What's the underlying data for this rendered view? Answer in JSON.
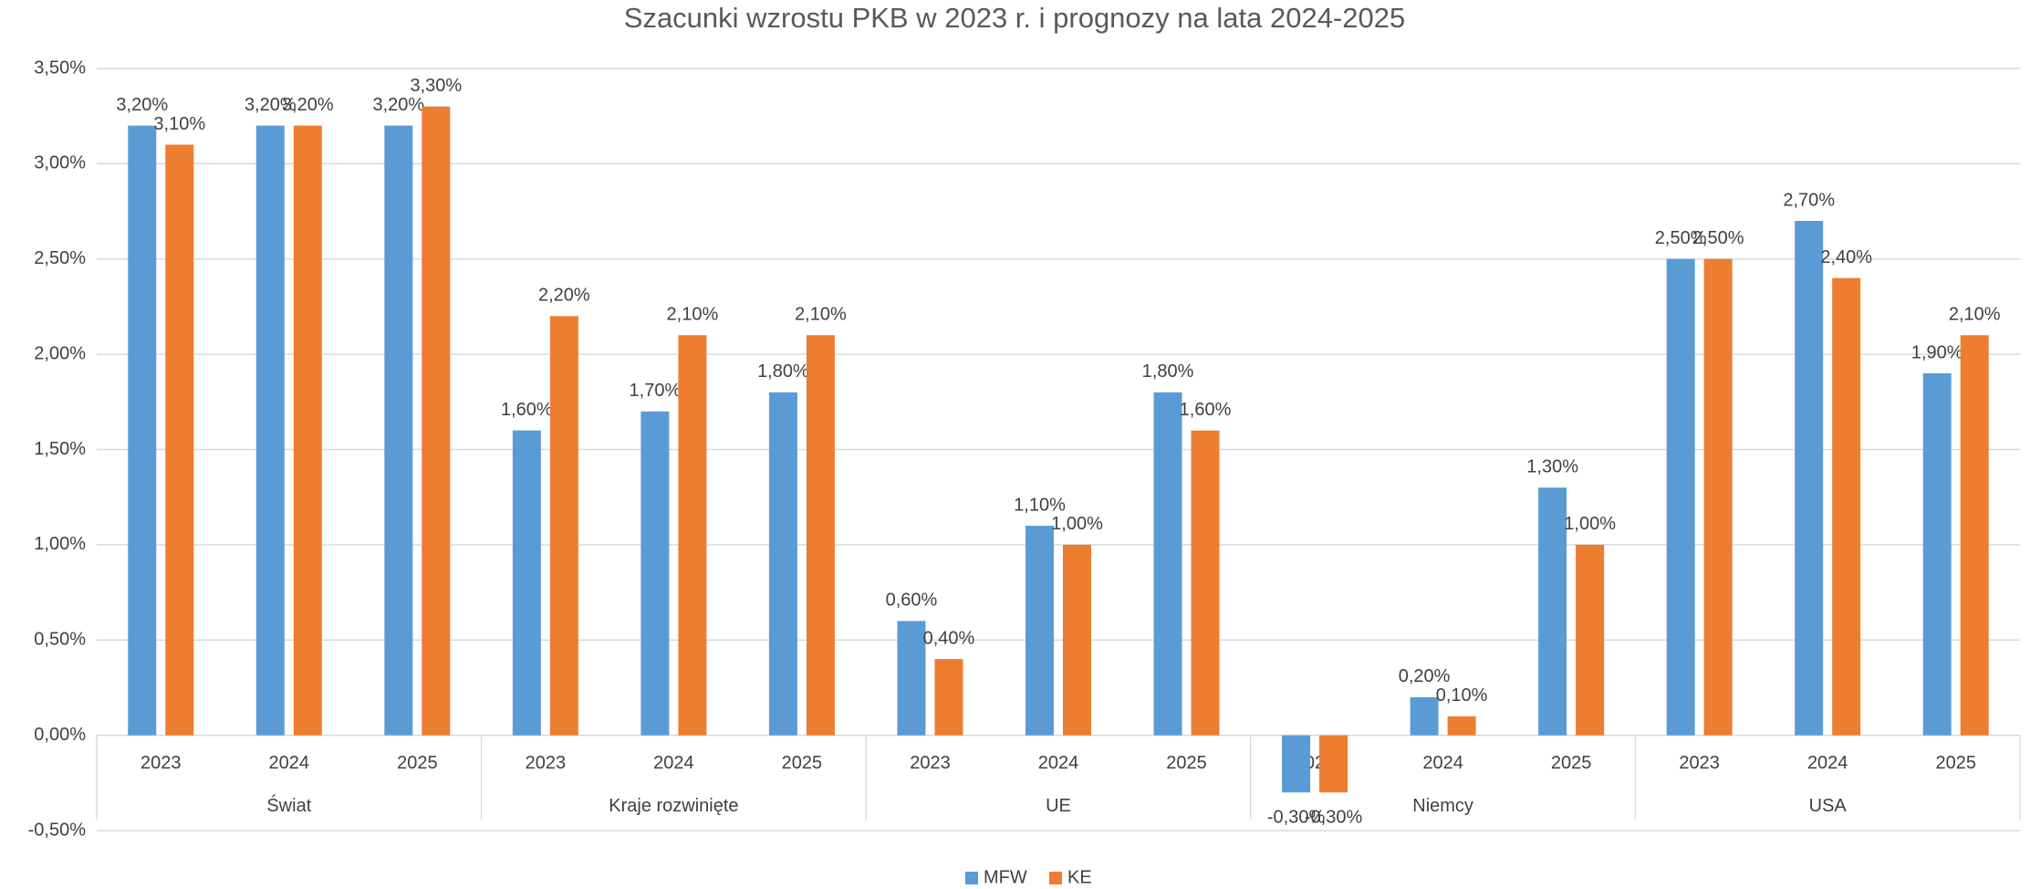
{
  "chart_data": {
    "type": "bar",
    "title": "Szacunki wzrostu PKB w 2023 r. i prognozy na lata 2024-2025",
    "categories": [
      "2023",
      "2024",
      "2025",
      "2023",
      "2024",
      "2025",
      "2023",
      "2024",
      "2025",
      "2023",
      "2024",
      "2025",
      "2023",
      "2024",
      "2025"
    ],
    "groups": [
      "Świat",
      "Kraje rozwinięte",
      "UE",
      "Niemcy",
      "USA"
    ],
    "series": [
      {
        "name": "MFW",
        "color": "#5b9bd5",
        "values": [
          3.2,
          3.2,
          3.2,
          1.6,
          1.7,
          1.8,
          0.6,
          1.1,
          1.8,
          -0.3,
          0.2,
          1.3,
          2.5,
          2.7,
          1.9
        ],
        "value_labels": [
          "3,20%",
          "3,20%",
          "3,20%",
          "1,60%",
          "1,70%",
          "1,80%",
          "0,60%",
          "1,10%",
          "1,80%",
          "-0,30%",
          "0,20%",
          "1,30%",
          "2,50%",
          "2,70%",
          "1,90%"
        ]
      },
      {
        "name": "KE",
        "color": "#ed7d31",
        "values": [
          3.1,
          3.2,
          3.3,
          2.2,
          2.1,
          2.1,
          0.4,
          1.0,
          1.6,
          -0.3,
          0.1,
          1.0,
          2.5,
          2.4,
          2.1
        ],
        "value_labels": [
          "3,10%",
          "3,20%",
          "3,30%",
          "2,20%",
          "2,10%",
          "2,10%",
          "0,40%",
          "1,00%",
          "1,60%",
          "-0,30%",
          "0,10%",
          "1,00%",
          "2,50%",
          "2,40%",
          "2,10%"
        ]
      }
    ],
    "ylim": [
      -0.5,
      3.5
    ],
    "yticks": [
      {
        "value": -0.5,
        "label": "-0,50%"
      },
      {
        "value": 0,
        "label": "0,00%"
      },
      {
        "value": 0.5,
        "label": "0,50%"
      },
      {
        "value": 1,
        "label": "1,00%"
      },
      {
        "value": 1.5,
        "label": "1,50%"
      },
      {
        "value": 2,
        "label": "2,00%"
      },
      {
        "value": 2.5,
        "label": "2,50%"
      },
      {
        "value": 3,
        "label": "3,00%"
      },
      {
        "value": 3.5,
        "label": "3,50%"
      }
    ],
    "grid": true,
    "legend": "bottom"
  }
}
